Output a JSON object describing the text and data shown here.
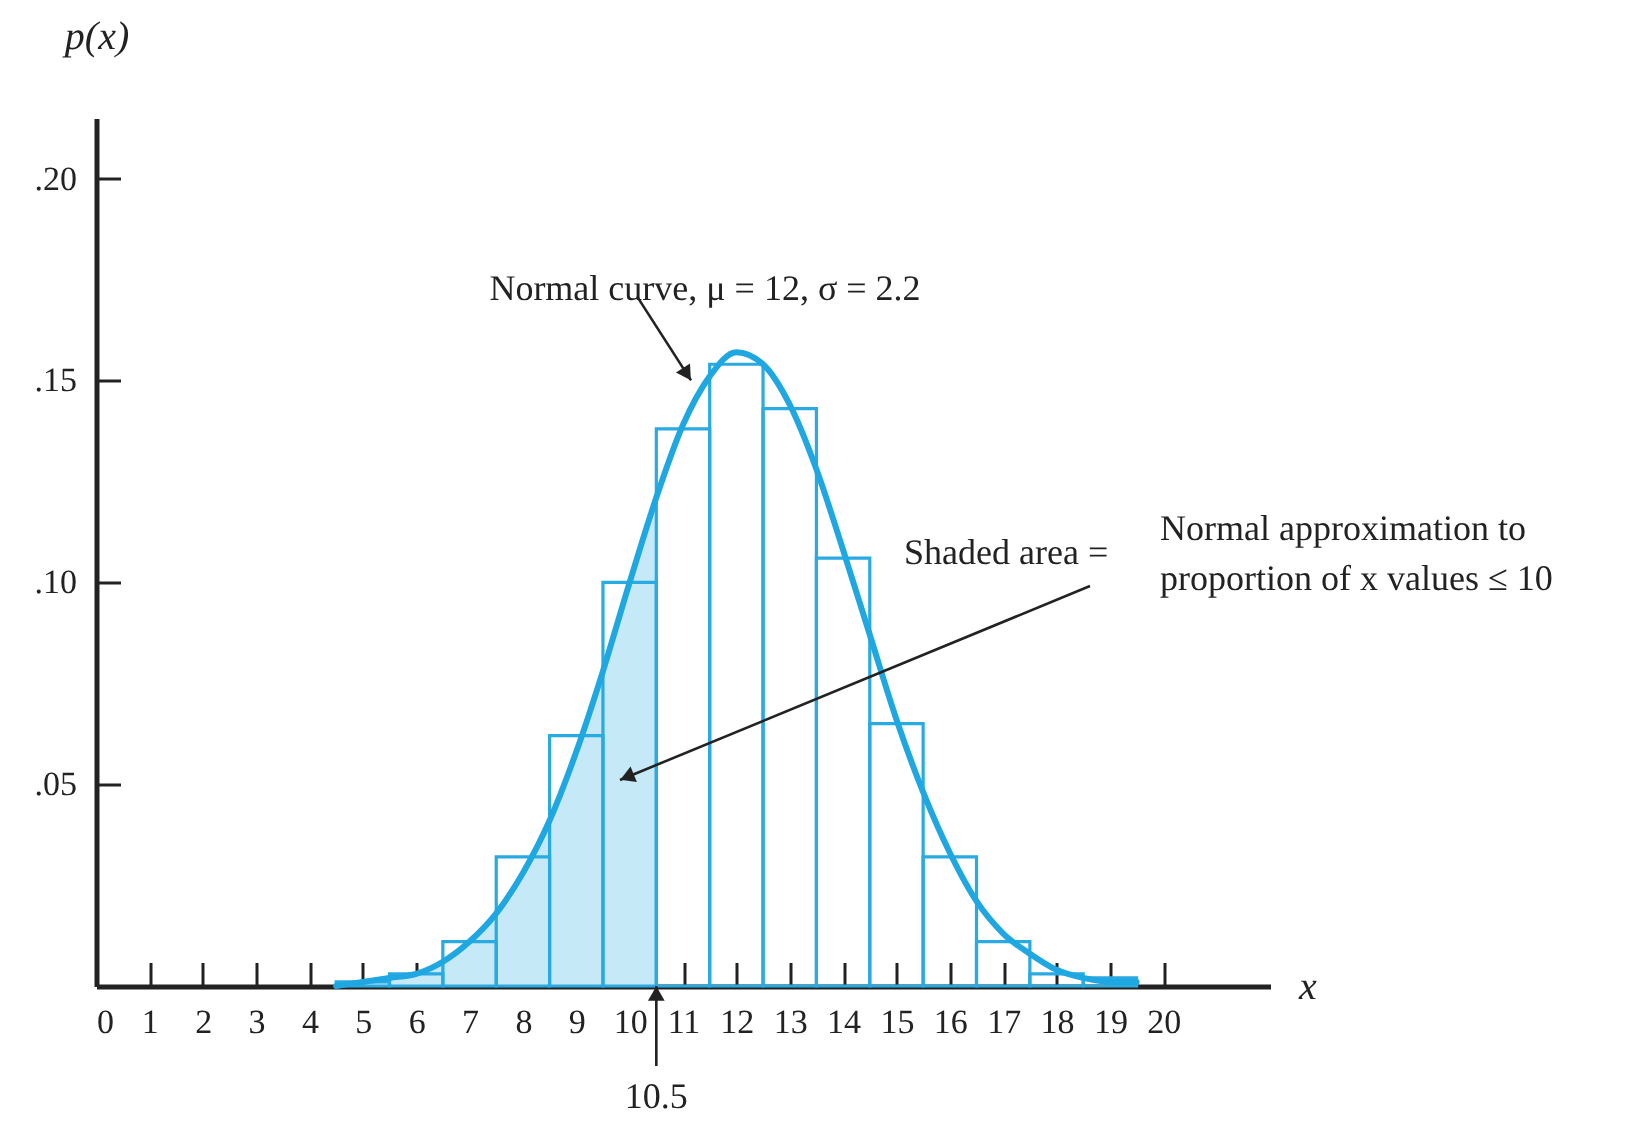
{
  "chart_data": {
    "type": "histogram",
    "xlabel": "x",
    "ylabel": "p(x)",
    "bins": [
      4.5,
      5.5,
      6.5,
      7.5,
      8.5,
      9.5,
      10.5,
      11.5,
      12.5,
      13.5,
      14.5,
      15.5,
      16.5,
      17.5,
      18.5,
      19.5
    ],
    "series": [
      {
        "type": "area",
        "color": "#c6e9f8",
        "x": [
          4.5,
          5,
          5.5,
          6,
          6.5,
          7,
          7.5,
          8,
          8.5,
          9,
          9.5,
          10,
          10.5
        ],
        "values": [
          0.0,
          0.001,
          0.002,
          0.003,
          0.006,
          0.011,
          0.018,
          0.028,
          0.041,
          0.058,
          0.078,
          0.1,
          0.121
        ]
      },
      {
        "color": "#29abe2",
        "values": [
          0.001,
          0.003,
          0.011,
          0.032,
          0.062,
          0.1,
          0.138,
          0.154,
          0.143,
          0.106,
          0.065,
          0.032,
          0.011,
          0.003,
          0.002
        ]
      },
      {
        "type": "line",
        "color": "#1ea7e1",
        "x": [
          4.5,
          5,
          5.5,
          6,
          6.5,
          7,
          7.5,
          8,
          8.5,
          9,
          9.5,
          10,
          10.5,
          11,
          11.5,
          12,
          12.5,
          13,
          13.5,
          14,
          14.5,
          15,
          15.5,
          16,
          16.5,
          17,
          17.5,
          18,
          18.5,
          19,
          19.5
        ],
        "values": [
          0.0,
          0.001,
          0.002,
          0.003,
          0.006,
          0.011,
          0.018,
          0.028,
          0.041,
          0.058,
          0.078,
          0.1,
          0.121,
          0.139,
          0.151,
          0.157,
          0.154,
          0.144,
          0.128,
          0.108,
          0.087,
          0.066,
          0.048,
          0.033,
          0.021,
          0.013,
          0.008,
          0.004,
          0.002,
          0.001,
          0.001
        ]
      }
    ],
    "xlim": [
      0,
      22
    ],
    "ylim": [
      0,
      0.215
    ],
    "xticks": [
      0,
      1,
      2,
      3,
      4,
      5,
      6,
      7,
      8,
      9,
      10,
      11,
      12,
      13,
      14,
      15,
      16,
      17,
      18,
      19,
      20
    ],
    "yticks": [
      {
        "value": 0.05,
        "label": ".05"
      },
      {
        "value": 0.1,
        "label": ".10"
      },
      {
        "value": 0.15,
        "label": ".15"
      },
      {
        "value": 0.2,
        "label": ".20"
      }
    ],
    "grid": false,
    "annotations": [
      {
        "text": "Normal curve, μ = 12, σ = 2.2",
        "x": 11.15,
        "y": 0.15
      },
      "Shaded area =",
      "Normal approximation to\nproportion of x values ≤ 10",
      {
        "text": "10.5",
        "x": 10.5,
        "y": 0
      }
    ]
  }
}
